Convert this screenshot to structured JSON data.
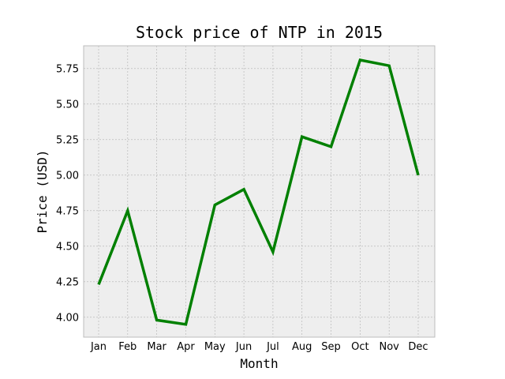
{
  "chart_data": {
    "type": "line",
    "title": "Stock price of NTP in 2015",
    "xlabel": "Month",
    "ylabel": "Price (USD)",
    "categories": [
      "Jan",
      "Feb",
      "Mar",
      "Apr",
      "May",
      "Jun",
      "Jul",
      "Aug",
      "Sep",
      "Oct",
      "Nov",
      "Dec"
    ],
    "series": [
      {
        "values": [
          4.23,
          4.75,
          3.98,
          3.95,
          4.79,
          4.9,
          4.46,
          5.27,
          5.2,
          5.81,
          5.77,
          5.0
        ],
        "color": "#008000"
      }
    ],
    "ylim": [
      3.86,
      5.91
    ],
    "yticks": [
      "4.00",
      "4.25",
      "4.50",
      "4.75",
      "5.00",
      "5.25",
      "5.50",
      "5.75"
    ],
    "grid": true,
    "legend": false,
    "plot_background": "#eeeeee",
    "grid_color": "#b0b0b0"
  }
}
